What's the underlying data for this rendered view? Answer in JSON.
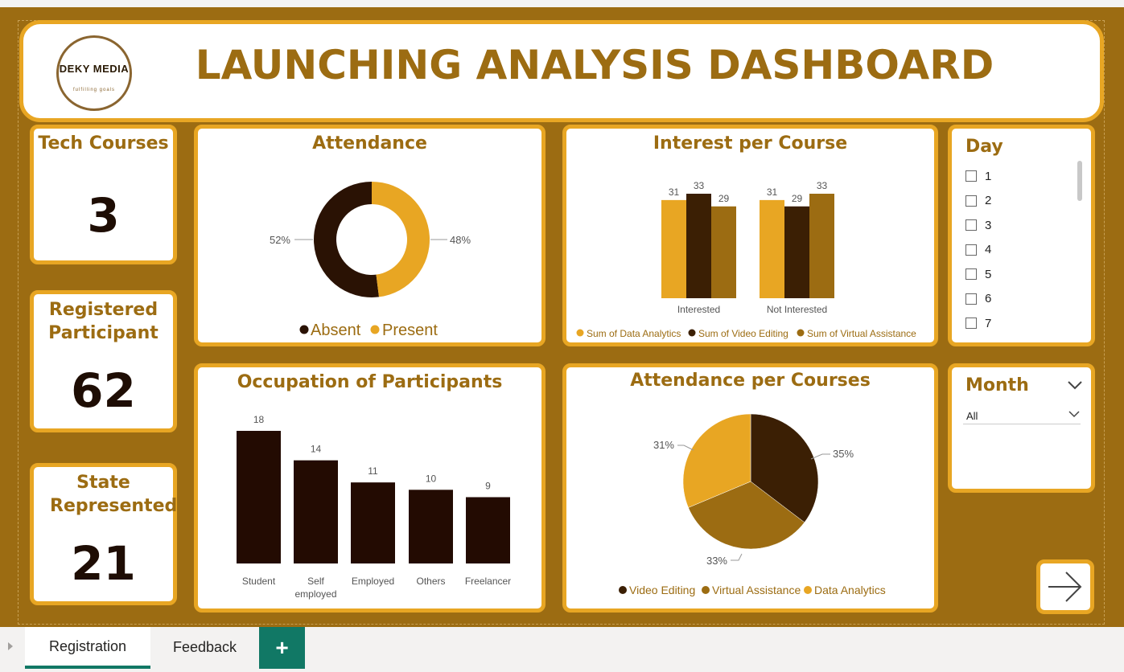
{
  "header": {
    "title": "LAUNCHING ANALYSIS DASHBOARD",
    "logo_name": "DEKY MEDIA",
    "logo_tagline": "fulfilling goals"
  },
  "kpis": [
    {
      "label": "Tech Courses",
      "value": "3"
    },
    {
      "label": "Registered Participant",
      "value": "62"
    },
    {
      "label": "State Represented",
      "value": "21"
    }
  ],
  "colors": {
    "background": "#9c6c12",
    "card_border": "#e8a623",
    "dark_brown": "#2a1204",
    "medium_brown": "#9c6c12",
    "orange": "#e8a623",
    "tab_accent": "#117865"
  },
  "chart_data": [
    {
      "id": "attendance",
      "type": "pie",
      "title": "Attendance",
      "donut": true,
      "labels": [
        "Absent",
        "Present"
      ],
      "values": [
        52,
        48
      ],
      "value_labels": [
        "52%",
        "48%"
      ],
      "colors": [
        "#2a1204",
        "#e8a623"
      ],
      "legend": "bottom"
    },
    {
      "id": "interest",
      "type": "bar",
      "title": "Interest per Course",
      "categories": [
        "Interested",
        "Not Interested"
      ],
      "series": [
        {
          "name": "Sum of Data Analytics",
          "values": [
            31,
            31
          ],
          "color": "#e8a623"
        },
        {
          "name": "Sum of Video Editing",
          "values": [
            33,
            29
          ],
          "color": "#3b1f04"
        },
        {
          "name": "Sum of Virtual Assistance",
          "values": [
            29,
            33
          ],
          "color": "#9c6c12"
        }
      ],
      "ylim": [
        0,
        33
      ],
      "legend": "bottom"
    },
    {
      "id": "occupation",
      "type": "bar",
      "title": "Occupation of Participants",
      "categories": [
        "Student",
        "Self employed",
        "Employed",
        "Others",
        "Freelancer"
      ],
      "values": [
        18,
        14,
        11,
        10,
        9
      ],
      "color": "#230b02",
      "ylim": [
        0,
        18
      ]
    },
    {
      "id": "attendance_courses",
      "type": "pie",
      "title": "Attendance per Courses",
      "labels": [
        "Video Editing",
        "Virtual Assistance",
        "Data Analytics"
      ],
      "values": [
        35,
        33,
        31
      ],
      "value_labels": [
        "35%",
        "33%",
        "31%"
      ],
      "colors": [
        "#3b1f04",
        "#9c6c12",
        "#e8a623"
      ],
      "legend": "bottom"
    }
  ],
  "day_slicer": {
    "title": "Day",
    "items": [
      "1",
      "2",
      "3",
      "4",
      "5",
      "6",
      "7"
    ]
  },
  "month_slicer": {
    "title": "Month",
    "selected": "All"
  },
  "next_button": {
    "icon": "arrow-right-icon"
  },
  "tabs": {
    "items": [
      "Registration",
      "Feedback"
    ],
    "active": "Registration",
    "add_label": "+"
  }
}
